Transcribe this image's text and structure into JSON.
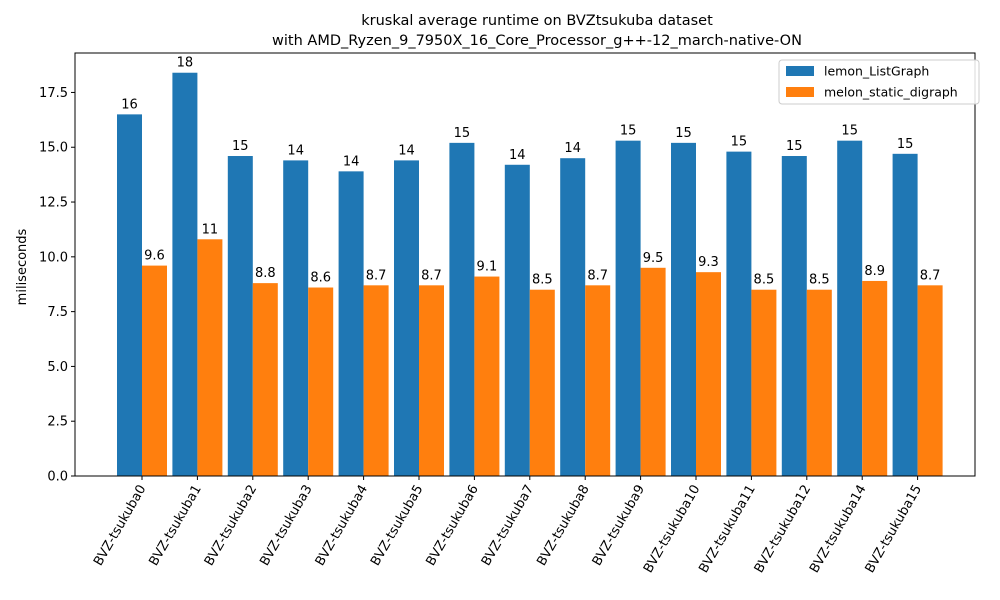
{
  "chart_data": {
    "type": "bar",
    "title": "kruskal average runtime on BVZtsukuba dataset",
    "subtitle": "with AMD_Ryzen_9_7950X_16_Core_Processor_g++-12_march-native-ON",
    "xlabel": "",
    "ylabel": "miliseconds",
    "ylim": [
      0,
      19.3
    ],
    "yticks": [
      "0.0",
      "2.5",
      "5.0",
      "7.5",
      "10.0",
      "12.5",
      "15.0",
      "17.5"
    ],
    "grid": false,
    "legend_position": "top-right",
    "categories": [
      "BVZ-tsukuba0",
      "BVZ-tsukuba1",
      "BVZ-tsukuba2",
      "BVZ-tsukuba3",
      "BVZ-tsukuba4",
      "BVZ-tsukuba5",
      "BVZ-tsukuba6",
      "BVZ-tsukuba7",
      "BVZ-tsukuba8",
      "BVZ-tsukuba9",
      "BVZ-tsukuba10",
      "BVZ-tsukuba11",
      "BVZ-tsukuba12",
      "BVZ-tsukuba14",
      "BVZ-tsukuba15"
    ],
    "series": [
      {
        "name": "lemon_ListGraph",
        "color": "#1f77b4",
        "values": [
          16.5,
          18.4,
          14.6,
          14.4,
          13.9,
          14.4,
          15.2,
          14.2,
          14.5,
          15.3,
          15.2,
          14.8,
          14.6,
          15.3,
          14.7
        ],
        "labels": [
          "16",
          "18",
          "15",
          "14",
          "14",
          "14",
          "15",
          "14",
          "14",
          "15",
          "15",
          "15",
          "15",
          "15",
          "15"
        ]
      },
      {
        "name": "melon_static_digraph",
        "color": "#ff7f0e",
        "values": [
          9.6,
          10.8,
          8.8,
          8.6,
          8.7,
          8.7,
          9.1,
          8.5,
          8.7,
          9.5,
          9.3,
          8.5,
          8.5,
          8.9,
          8.7
        ],
        "labels": [
          "9.6",
          "11",
          "8.8",
          "8.6",
          "8.7",
          "8.7",
          "9.1",
          "8.5",
          "8.7",
          "9.5",
          "9.3",
          "8.5",
          "8.5",
          "8.9",
          "8.7"
        ]
      }
    ]
  }
}
